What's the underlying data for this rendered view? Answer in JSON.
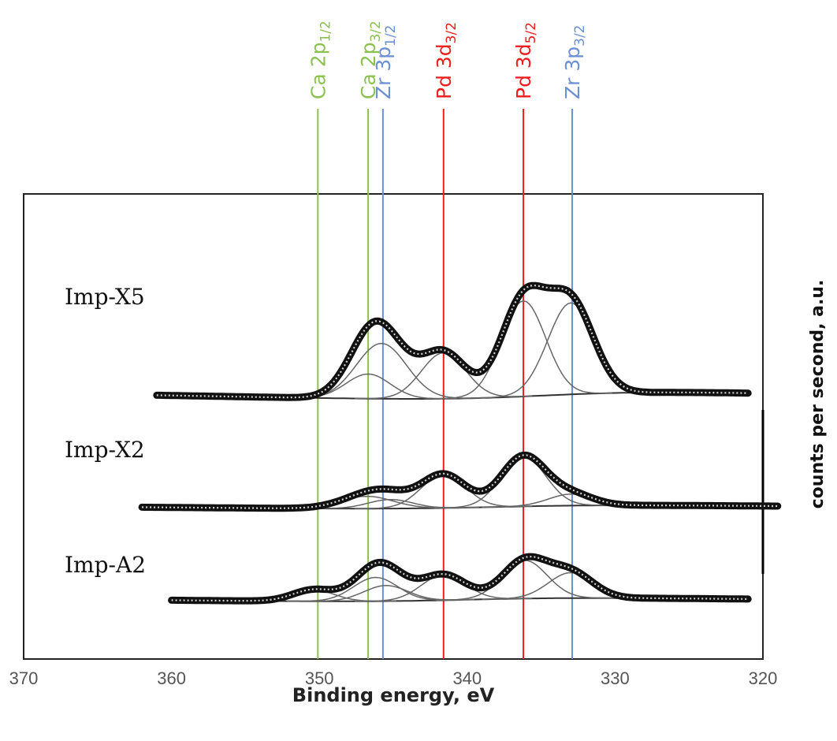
{
  "chart_data": {
    "type": "line",
    "title": "",
    "xlabel": "Binding energy, eV",
    "ylabel": "counts per second, a.u.",
    "xlim": [
      370,
      320
    ],
    "x_reversed": true,
    "xticks": [
      370,
      360,
      350,
      340,
      330,
      320
    ],
    "y_units": "arbitrary (offset stacked spectra)",
    "peak_lines": [
      {
        "id": "ca2p12",
        "element": "Ca",
        "orbital": "2p",
        "sub": "1/2",
        "position": 350.1,
        "color": "#8cc152"
      },
      {
        "id": "ca2p32",
        "element": "Ca",
        "orbital": "2p",
        "sub": "3/2",
        "position": 346.7,
        "color": "#8cc152"
      },
      {
        "id": "zr3p12",
        "element": "Zr",
        "orbital": "3p",
        "sub": "1/2",
        "position": 345.7,
        "color": "#6b8fd0"
      },
      {
        "id": "pd3d32",
        "element": "Pd",
        "orbital": "3d",
        "sub": "3/2",
        "position": 341.6,
        "color": "#ee1c1c"
      },
      {
        "id": "pd3d52",
        "element": "Pd",
        "orbital": "3d",
        "sub": "5/2",
        "position": 336.2,
        "color": "#ee1c1c"
      },
      {
        "id": "zr3p32",
        "element": "Zr",
        "orbital": "3p",
        "sub": "3/2",
        "position": 332.9,
        "color": "#6b8fd0"
      }
    ],
    "series": [
      {
        "name": "Imp-X5",
        "x_range": [
          361,
          321
        ],
        "baseline_start": 0.6,
        "baseline_end": 0.02,
        "background_step_center": 335,
        "peaks": [
          {
            "center": 346.7,
            "height": 0.6,
            "width": 1.5
          },
          {
            "center": 345.8,
            "height": 1.35,
            "width": 1.7
          },
          {
            "center": 341.6,
            "height": 1.12,
            "width": 1.5
          },
          {
            "center": 336.2,
            "height": 2.33,
            "width": 1.5
          },
          {
            "center": 333.0,
            "height": 2.23,
            "width": 1.55
          }
        ]
      },
      {
        "name": "Imp-X2",
        "x_range": [
          362,
          319
        ],
        "baseline_start": 0.28,
        "baseline_end": 0.0,
        "background_step_center": 338,
        "peaks": [
          {
            "center": 346.8,
            "height": 0.3,
            "width": 1.8
          },
          {
            "center": 345.2,
            "height": 0.22,
            "width": 1.5
          },
          {
            "center": 341.6,
            "height": 0.82,
            "width": 1.5
          },
          {
            "center": 336.2,
            "height": 1.22,
            "width": 1.5
          },
          {
            "center": 333.0,
            "height": 0.28,
            "width": 1.5
          }
        ]
      },
      {
        "name": "Imp-A2",
        "x_range": [
          360,
          321
        ],
        "baseline_start": 0.33,
        "baseline_end": 0.03,
        "background_step_center": 340,
        "peaks": [
          {
            "center": 350.4,
            "height": 0.28,
            "width": 1.4
          },
          {
            "center": 346.2,
            "height": 0.58,
            "width": 1.5
          },
          {
            "center": 345.5,
            "height": 0.38,
            "width": 1.5
          },
          {
            "center": 341.6,
            "height": 0.62,
            "width": 1.5
          },
          {
            "center": 336.1,
            "height": 0.93,
            "width": 1.5
          },
          {
            "center": 333.0,
            "height": 0.62,
            "width": 1.5
          }
        ]
      }
    ]
  }
}
